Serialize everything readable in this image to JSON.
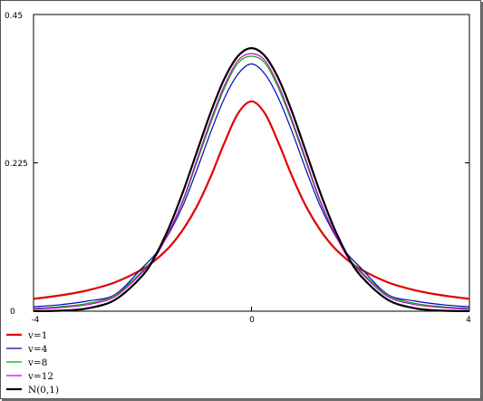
{
  "chart_data": {
    "type": "line",
    "title": "",
    "xlabel": "",
    "ylabel": "",
    "xlim": [
      -4,
      4
    ],
    "ylim": [
      0,
      0.45
    ],
    "grid": false,
    "legend_position": "bottom-left",
    "x_tick_labels": [
      "-4",
      "0",
      "4"
    ],
    "y_tick_labels": [
      "0",
      "0.225",
      "0.45"
    ],
    "x_ticks": [
      -4,
      0,
      4
    ],
    "y_ticks": [
      0,
      0.225,
      0.45
    ],
    "x": [
      -4,
      -3.5,
      -3,
      -2.5,
      -2,
      -1.75,
      -1.5,
      -1.25,
      -1,
      -0.75,
      -0.5,
      -0.25,
      0,
      0.25,
      0.5,
      0.75,
      1,
      1.25,
      1.5,
      1.75,
      2,
      2.5,
      3,
      3.5,
      4
    ],
    "series": [
      {
        "name": "v=1",
        "color": "#e00000",
        "width": 2.2,
        "values": [
          0.0187,
          0.0241,
          0.0318,
          0.0439,
          0.0637,
          0.0786,
          0.0979,
          0.1245,
          0.1592,
          0.2037,
          0.2546,
          0.2996,
          0.3183,
          0.2996,
          0.2546,
          0.2037,
          0.1592,
          0.1245,
          0.0979,
          0.0786,
          0.0637,
          0.0439,
          0.0318,
          0.0241,
          0.0187
        ]
      },
      {
        "name": "v=4",
        "color": "#0000cc",
        "width": 1.2,
        "values": [
          0.0066,
          0.0099,
          0.0155,
          0.0255,
          0.0663,
          0.0879,
          0.1202,
          0.1616,
          0.2147,
          0.2712,
          0.3224,
          0.3594,
          0.375,
          0.3594,
          0.3224,
          0.2712,
          0.2147,
          0.1616,
          0.1202,
          0.0879,
          0.0663,
          0.0255,
          0.0155,
          0.0099,
          0.0066
        ]
      },
      {
        "name": "v=8",
        "color": "#00aa00",
        "width": 1.2,
        "values": [
          0.0042,
          0.007,
          0.012,
          0.0244,
          0.0611,
          0.0848,
          0.1226,
          0.168,
          0.2264,
          0.2848,
          0.3373,
          0.376,
          0.3867,
          0.376,
          0.3373,
          0.2848,
          0.2264,
          0.168,
          0.1226,
          0.0848,
          0.0611,
          0.0244,
          0.012,
          0.007,
          0.0042
        ]
      },
      {
        "name": "v=12",
        "color": "#cc00cc",
        "width": 1.2,
        "values": [
          0.003,
          0.0055,
          0.0101,
          0.0223,
          0.0591,
          0.0838,
          0.1228,
          0.1701,
          0.23,
          0.2891,
          0.3418,
          0.38,
          0.3907,
          0.38,
          0.3418,
          0.2891,
          0.23,
          0.1701,
          0.1228,
          0.0838,
          0.0591,
          0.0223,
          0.0101,
          0.0055,
          0.003
        ]
      },
      {
        "name": "N(0,1)",
        "color": "#000000",
        "width": 2.2,
        "values": [
          0.0001,
          0.0009,
          0.0044,
          0.0175,
          0.054,
          0.0863,
          0.1295,
          0.1826,
          0.242,
          0.3011,
          0.3521,
          0.3867,
          0.3989,
          0.3867,
          0.3521,
          0.3011,
          0.242,
          0.1826,
          0.1295,
          0.0863,
          0.054,
          0.0175,
          0.0044,
          0.0009,
          0.0001
        ]
      }
    ]
  }
}
